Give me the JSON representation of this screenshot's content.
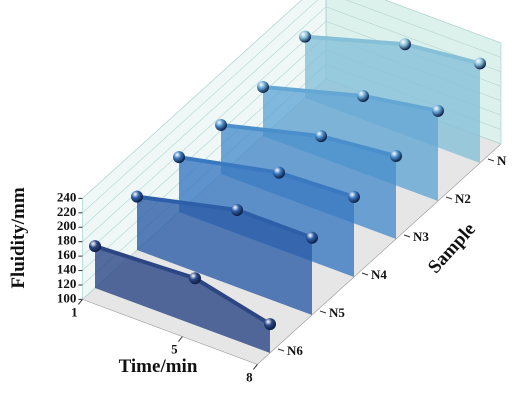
{
  "chart_data": {
    "type": "waterfall3d",
    "x_label": "Time/min",
    "y_label": "Fluidity/mm",
    "z_label": "Sample",
    "x": [
      1,
      5,
      8
    ],
    "xlim": [
      1,
      8
    ],
    "xticks": [
      1,
      5,
      8
    ],
    "ylim": [
      100,
      240
    ],
    "yticks": [
      100,
      120,
      140,
      160,
      180,
      200,
      220,
      240
    ],
    "grid": true,
    "series": [
      {
        "name": "N",
        "color": "#86c0d8",
        "values": [
          185,
          226,
          238
        ]
      },
      {
        "name": "N2",
        "color": "#64a6d4",
        "values": [
          168,
          207,
          225
        ]
      },
      {
        "name": "N3",
        "color": "#4a8fcc",
        "values": [
          168,
          204,
          215
        ]
      },
      {
        "name": "N4",
        "color": "#3a78c0",
        "values": [
          176,
          206,
          211
        ]
      },
      {
        "name": "N5",
        "color": "#2d5ea8",
        "values": [
          174,
          207,
          207
        ]
      },
      {
        "name": "N6",
        "color": "#2c4684",
        "values": [
          158,
          165,
          140
        ]
      }
    ]
  }
}
